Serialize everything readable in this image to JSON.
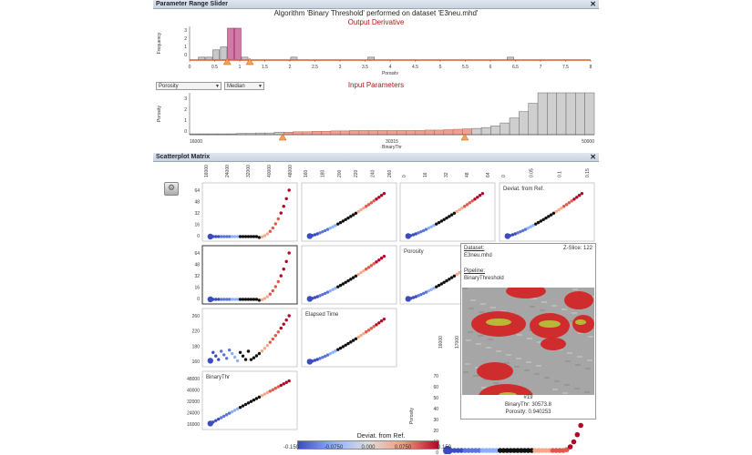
{
  "param_slider": {
    "title": "Parameter Range Slider",
    "algorithm_title": "Algorithm 'Binary Threshold' performed on dataset 'E3neu.mhd'",
    "output_label": "Output Derivative",
    "input_label": "Input Parameters",
    "output_ylabel": "Frequency",
    "output_xlabel": "Porosity",
    "output_yticks": [
      "3",
      "2",
      "1",
      "0"
    ],
    "output_xticks": [
      "0",
      "0.5",
      "1",
      "1.5",
      "2",
      "2.5",
      "3",
      "3.5",
      "4",
      "4.5",
      "5",
      "5.5",
      "6",
      "6.5",
      "7",
      "7.5",
      "8"
    ],
    "input_ylabel": "Porosity",
    "input_xlabel": "BinaryThr",
    "input_xticks": [
      "16000",
      "30315",
      "50000"
    ],
    "input_yticks": [
      "3",
      "2",
      "1",
      "0"
    ],
    "dropdown_param": "Porosity",
    "dropdown_stat": "Median",
    "output_bars": [
      {
        "x": 0.24,
        "h": 0.09,
        "hl": false
      },
      {
        "x": 0.39,
        "h": 0.09,
        "hl": false
      },
      {
        "x": 0.53,
        "h": 0.32,
        "hl": false
      },
      {
        "x": 0.68,
        "h": 0.41,
        "hl": false
      },
      {
        "x": 0.82,
        "h": 1.0,
        "hl": true
      },
      {
        "x": 0.96,
        "h": 1.0,
        "hl": true
      },
      {
        "x": 1.1,
        "h": 0.09,
        "hl": false
      },
      {
        "x": 2.08,
        "h": 0.09,
        "hl": false
      },
      {
        "x": 3.62,
        "h": 0.09,
        "hl": false
      },
      {
        "x": 6.4,
        "h": 0.09,
        "hl": false
      }
    ],
    "output_markers": [
      0.75,
      1.2
    ],
    "input_bars": [
      0.02,
      0.02,
      0.02,
      0.02,
      0.02,
      0.03,
      0.03,
      0.04,
      0.04,
      0.06,
      0.06,
      0.07,
      0.07,
      0.08,
      0.08,
      0.09,
      0.09,
      0.1,
      0.1,
      0.1,
      0.1,
      0.1,
      0.1,
      0.1,
      0.1,
      0.11,
      0.11,
      0.12,
      0.13,
      0.14,
      0.15,
      0.17,
      0.21,
      0.28,
      0.4,
      0.55,
      0.75,
      1.0,
      1.0,
      1.0,
      1.0,
      1.0,
      1.0
    ],
    "input_sel": [
      10,
      29
    ],
    "input_markers": [
      0.23,
      0.68
    ]
  },
  "matrix": {
    "title": "Scatterplot Matrix",
    "cell_labels": {
      "devfromref": "Deviat. from Ref.",
      "porosity": "Porosity",
      "elapsed": "Elapsed Time",
      "binarythr": "BinaryThr"
    },
    "col_ticks": [
      [
        "16000",
        "24000",
        "32000",
        "40000",
        "48000"
      ],
      [
        "160",
        "180",
        "200",
        "220",
        "240",
        "260"
      ],
      [
        "0",
        "16",
        "32",
        "48",
        "64"
      ],
      [
        "0",
        "0.05",
        "0.1",
        "0.15"
      ]
    ],
    "row_ticks": [
      [
        "64",
        "48",
        "32",
        "16",
        "0"
      ],
      [
        "64",
        "48",
        "32",
        "16",
        "0"
      ],
      [
        "260",
        "220",
        "180",
        "160"
      ],
      [
        "48000",
        "40000",
        "32000",
        "24000",
        "16000"
      ]
    ],
    "bottom_yticks": [
      "70",
      "60",
      "50",
      "40",
      "30",
      "20",
      "10",
      "0"
    ],
    "bottom_ylabel": "Porosity",
    "bottom_ticks_top": [
      "16000",
      "17000"
    ],
    "colorbar_title": "Deviat. from Ref.",
    "colorbar_ticks": [
      "-0.150",
      "-0.0750",
      "0.000",
      "0.0750",
      "0.150"
    ],
    "colorbar_colors": [
      "#3b4cc0",
      "#8db0fe",
      "#dddddd",
      "#f49a7b",
      "#b40426"
    ]
  },
  "tooltip": {
    "dataset_label": "Dataset:",
    "dataset_value": "E3neu.mhd",
    "slice_label": "Z-Slice: 122",
    "pipeline_label": "Pipeline:",
    "pipeline_value": "BinaryThreshold",
    "sample_id": "#19",
    "binarythr": "BinaryThr: 30573.8",
    "porosity": "Porosity: 0.940253"
  }
}
